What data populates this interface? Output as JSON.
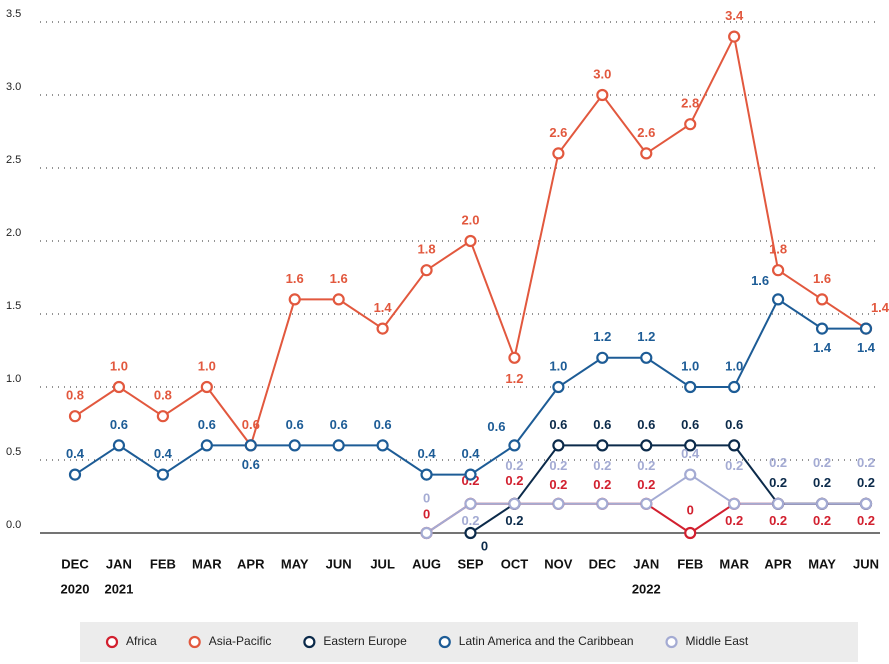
{
  "chart_data": {
    "type": "line",
    "categories": [
      "DEC",
      "JAN",
      "FEB",
      "MAR",
      "APR",
      "MAY",
      "JUN",
      "JUL",
      "AUG",
      "SEP",
      "OCT",
      "NOV",
      "DEC",
      "JAN",
      "FEB",
      "MAR",
      "APR",
      "MAY",
      "JUN"
    ],
    "category_years": [
      "2020",
      "2021",
      null,
      null,
      null,
      null,
      null,
      null,
      null,
      null,
      null,
      null,
      null,
      "2022",
      null,
      null,
      null,
      null,
      null
    ],
    "ylim": [
      0,
      3.5
    ],
    "yticks": [
      {
        "value": 0,
        "label": "0.0"
      },
      {
        "value": 0.5,
        "label": "0.5"
      },
      {
        "value": 1,
        "label": "1.0"
      },
      {
        "value": 1.5,
        "label": "1.5"
      },
      {
        "value": 2,
        "label": "2.0"
      },
      {
        "value": 2.5,
        "label": "2.5"
      },
      {
        "value": 3,
        "label": "3.0"
      },
      {
        "value": 3.5,
        "label": "3.5"
      }
    ],
    "grid": true,
    "legend": "bottom",
    "series": [
      {
        "name": "Africa",
        "color": "#d2202f",
        "values": [
          null,
          null,
          null,
          null,
          null,
          null,
          null,
          null,
          0,
          0.2,
          0.2,
          0.2,
          0.2,
          0.2,
          0,
          0.2,
          0.2,
          0.2,
          0.2
        ],
        "value_labels": [
          null,
          null,
          null,
          null,
          null,
          null,
          null,
          null,
          "0",
          "0.2",
          "0.2",
          "0.2",
          "0.2",
          "0.2",
          "0",
          "0.2",
          "0.2",
          "0.2",
          "0.2"
        ]
      },
      {
        "name": "Asia-Pacific",
        "color": "#e2583e",
        "values": [
          0.8,
          1.0,
          0.8,
          1.0,
          0.6,
          1.6,
          1.6,
          1.4,
          1.8,
          2.0,
          1.2,
          2.6,
          3.0,
          2.6,
          2.8,
          3.4,
          1.8,
          1.6,
          1.4
        ],
        "value_labels": [
          "0.8",
          "1.0",
          "0.8",
          "1.0",
          "0.6",
          "1.6",
          "1.6",
          "1.4",
          "1.8",
          "2.0",
          "1.2",
          "2.6",
          "3.0",
          "2.6",
          "2.8",
          "3.4",
          "1.8",
          "1.6",
          "1.4"
        ]
      },
      {
        "name": "Eastern Europe",
        "color": "#0b2a4a",
        "values": [
          null,
          null,
          null,
          null,
          null,
          null,
          null,
          null,
          null,
          0,
          0.2,
          0.6,
          0.6,
          0.6,
          0.6,
          0.6,
          0.2,
          0.2,
          0.2
        ],
        "value_labels": [
          null,
          null,
          null,
          null,
          null,
          null,
          null,
          null,
          null,
          "0",
          "0.2",
          "0.6",
          "0.6",
          "0.6",
          "0.6",
          "0.6",
          "0.2",
          "0.2",
          "0.2"
        ]
      },
      {
        "name": "Latin America and the Caribbean",
        "color": "#1d5c96",
        "values": [
          0.4,
          0.6,
          0.4,
          0.6,
          0.6,
          0.6,
          0.6,
          0.6,
          0.4,
          0.4,
          0.6,
          1.0,
          1.2,
          1.2,
          1.0,
          1.0,
          1.6,
          1.4,
          1.4
        ],
        "value_labels": [
          "0.4",
          "0.6",
          "0.4",
          "0.6",
          "0.6",
          "0.6",
          "0.6",
          "0.6",
          "0.4",
          "0.4",
          "0.6",
          "1.0",
          "1.2",
          "1.2",
          "1.0",
          "1.0",
          "1.6",
          "1.4",
          "1.4"
        ]
      },
      {
        "name": "Middle East",
        "color": "#a4abd3",
        "values": [
          null,
          null,
          null,
          null,
          null,
          null,
          null,
          null,
          0,
          0.2,
          0.2,
          0.2,
          0.2,
          0.2,
          0.4,
          0.2,
          0.2,
          0.2,
          0.2
        ],
        "value_labels": [
          null,
          null,
          null,
          null,
          null,
          null,
          null,
          null,
          "0",
          "0.2",
          "0.2",
          "0.2",
          "0.2",
          "0.2",
          "0.4",
          "0.2",
          "0.2",
          "0.2",
          "0.2"
        ]
      }
    ]
  }
}
